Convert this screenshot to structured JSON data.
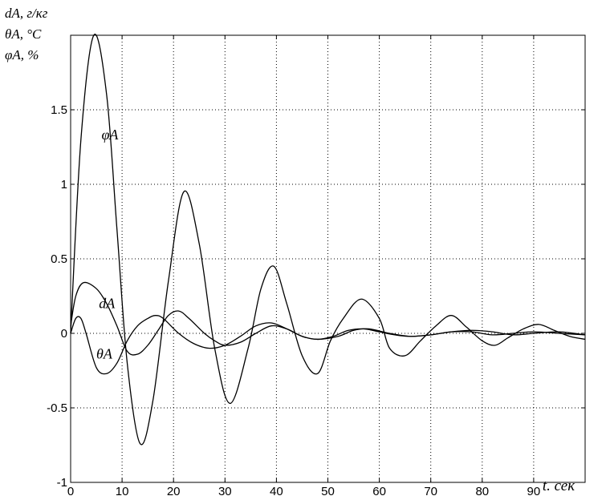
{
  "chart_data": {
    "type": "line",
    "ylabel_lines": [
      "dA, г/кг",
      "θA, °C",
      "φA, %"
    ],
    "xlabel": "t. сек",
    "xlim": [
      0,
      100
    ],
    "ylim": [
      -1,
      2
    ],
    "x_ticks": [
      0,
      10,
      20,
      30,
      40,
      50,
      60,
      70,
      80,
      90
    ],
    "x_tick_labels": [
      "0",
      "10",
      "20",
      "30",
      "40",
      "50",
      "60",
      "70",
      "80",
      "90"
    ],
    "y_ticks": [
      -1,
      -0.5,
      0,
      0.5,
      1,
      1.5
    ],
    "y_tick_labels": [
      "-1",
      "-0.5",
      "0",
      "0.5",
      "1",
      "1.5"
    ],
    "grid": true,
    "series": [
      {
        "name": "φA",
        "x": [
          0,
          2,
          4.5,
          7,
          9,
          11,
          13.5,
          16,
          19,
          22,
          25,
          28,
          31,
          34.5,
          37,
          39.5,
          42,
          45,
          48,
          50.5,
          53,
          56.5,
          60,
          62,
          65,
          68,
          71,
          74,
          77,
          80,
          82.5,
          85,
          88,
          91,
          94,
          97,
          100
        ],
        "y": [
          0,
          1.3,
          2.0,
          1.6,
          0.7,
          -0.2,
          -0.74,
          -0.45,
          0.35,
          0.95,
          0.6,
          -0.1,
          -0.47,
          -0.1,
          0.3,
          0.45,
          0.2,
          -0.15,
          -0.27,
          -0.05,
          0.1,
          0.23,
          0.1,
          -0.1,
          -0.15,
          -0.05,
          0.05,
          0.12,
          0.04,
          -0.05,
          -0.08,
          -0.03,
          0.03,
          0.06,
          0.02,
          -0.02,
          -0.04
        ]
      },
      {
        "name": "dA",
        "x": [
          0,
          1,
          2.5,
          5,
          7,
          9,
          11,
          13,
          15,
          17,
          19,
          21,
          23,
          26,
          28,
          30,
          33,
          36,
          39,
          42,
          45,
          48,
          51,
          54,
          57,
          60,
          63,
          66,
          70,
          74,
          78,
          82,
          86,
          90,
          95,
          100
        ],
        "y": [
          0.05,
          0.25,
          0.34,
          0.3,
          0.2,
          0.05,
          -0.12,
          -0.14,
          -0.08,
          0.02,
          0.12,
          0.15,
          0.1,
          0,
          -0.05,
          -0.08,
          -0.06,
          0,
          0.05,
          0.03,
          -0.02,
          -0.04,
          -0.02,
          0.02,
          0.03,
          0.01,
          -0.01,
          -0.02,
          -0.01,
          0.01,
          0.01,
          -0.01,
          0,
          0.01,
          0,
          -0.01
        ]
      },
      {
        "name": "θA",
        "x": [
          0,
          1,
          2,
          3,
          5,
          7,
          9,
          11,
          13,
          15,
          16.5,
          18,
          21,
          24,
          27,
          30,
          33,
          36,
          39,
          42,
          45,
          48,
          52,
          55,
          58,
          62,
          66,
          70,
          74,
          78,
          82,
          86,
          90,
          95,
          100
        ],
        "y": [
          0,
          0.1,
          0.1,
          0,
          -0.23,
          -0.27,
          -0.2,
          -0.05,
          0.05,
          0.1,
          0.12,
          0.1,
          0,
          -0.07,
          -0.1,
          -0.08,
          -0.02,
          0.05,
          0.07,
          0.03,
          -0.02,
          -0.04,
          -0.02,
          0.02,
          0.03,
          0,
          -0.02,
          -0.01,
          0.01,
          0.02,
          0.01,
          -0.01,
          0,
          0.01,
          -0.01
        ]
      }
    ],
    "annotations": [
      {
        "text": "φA",
        "x": 6,
        "y": 1.3
      },
      {
        "text": "dA",
        "x": 5.5,
        "y": 0.17
      },
      {
        "text": "θA",
        "x": 5,
        "y": -0.17
      }
    ]
  }
}
